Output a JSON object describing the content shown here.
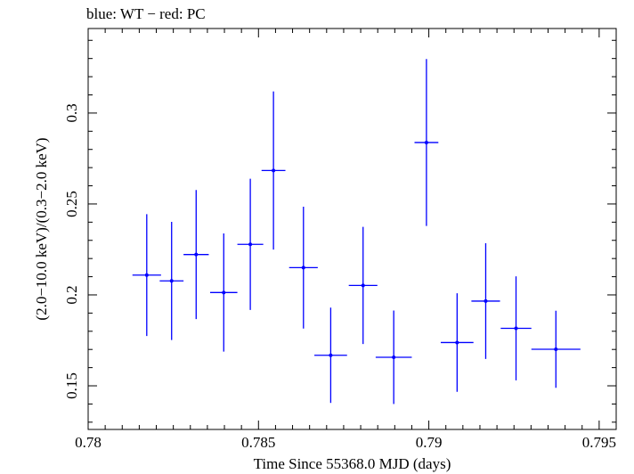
{
  "chart_data": {
    "type": "scatter",
    "title": "blue: WT − red: PC",
    "xlabel": "Time Since 55368.0 MJD (days)",
    "ylabel": "(2.0−10.0 keV)/(0.3−2.0 keV)",
    "xlim": [
      0.78,
      0.7955
    ],
    "ylim": [
      0.126,
      0.3465
    ],
    "xticks": [
      0.78,
      0.785,
      0.79,
      0.795
    ],
    "xtick_labels": [
      "0.78",
      "0.785",
      "0.79",
      "0.795"
    ],
    "yticks": [
      0.15,
      0.2,
      0.25,
      0.3
    ],
    "ytick_labels": [
      "0.15",
      "0.2",
      "0.25",
      "0.3"
    ],
    "grid": false,
    "series": [
      {
        "color": "#0000ff",
        "points": [
          {
            "x": 0.78172,
            "y": 0.2109,
            "xerr": 0.00042,
            "yerr_lo": 0.0335,
            "yerr_hi": 0.0335
          },
          {
            "x": 0.78245,
            "y": 0.2077,
            "xerr": 0.00035,
            "yerr_lo": 0.0325,
            "yerr_hi": 0.0325
          },
          {
            "x": 0.78317,
            "y": 0.2222,
            "xerr": 0.00037,
            "yerr_lo": 0.0355,
            "yerr_hi": 0.0355
          },
          {
            "x": 0.78398,
            "y": 0.2013,
            "xerr": 0.0004,
            "yerr_lo": 0.0325,
            "yerr_hi": 0.0325
          },
          {
            "x": 0.78476,
            "y": 0.2278,
            "xerr": 0.00038,
            "yerr_lo": 0.0361,
            "yerr_hi": 0.0361
          },
          {
            "x": 0.78544,
            "y": 0.2684,
            "xerr": 0.00035,
            "yerr_lo": 0.0435,
            "yerr_hi": 0.0435
          },
          {
            "x": 0.78632,
            "y": 0.215,
            "xerr": 0.00042,
            "yerr_lo": 0.0335,
            "yerr_hi": 0.0335
          },
          {
            "x": 0.78712,
            "y": 0.1668,
            "xerr": 0.00048,
            "yerr_lo": 0.0262,
            "yerr_hi": 0.0262
          },
          {
            "x": 0.78807,
            "y": 0.2052,
            "xerr": 0.00042,
            "yerr_lo": 0.0322,
            "yerr_hi": 0.0322
          },
          {
            "x": 0.78897,
            "y": 0.1657,
            "xerr": 0.00053,
            "yerr_lo": 0.0257,
            "yerr_hi": 0.0257
          },
          {
            "x": 0.78993,
            "y": 0.2838,
            "xerr": 0.00035,
            "yerr_lo": 0.0459,
            "yerr_hi": 0.0459
          },
          {
            "x": 0.79083,
            "y": 0.1738,
            "xerr": 0.00048,
            "yerr_lo": 0.0271,
            "yerr_hi": 0.0271
          },
          {
            "x": 0.79167,
            "y": 0.1966,
            "xerr": 0.00042,
            "yerr_lo": 0.0318,
            "yerr_hi": 0.0318
          },
          {
            "x": 0.79256,
            "y": 0.1816,
            "xerr": 0.00045,
            "yerr_lo": 0.0286,
            "yerr_hi": 0.0286
          },
          {
            "x": 0.79373,
            "y": 0.1701,
            "xerr": 0.00072,
            "yerr_lo": 0.0212,
            "yerr_hi": 0.0212
          }
        ]
      }
    ]
  }
}
